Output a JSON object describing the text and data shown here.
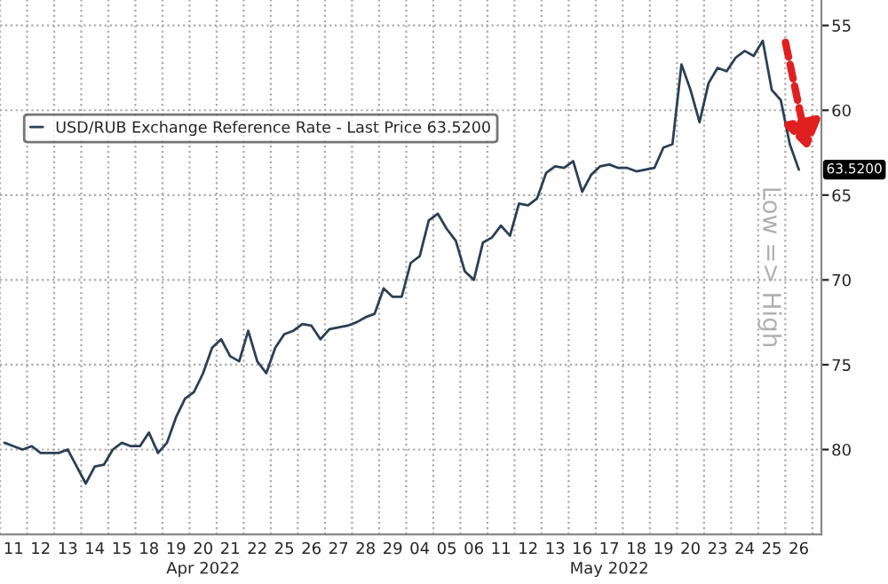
{
  "chart_data": {
    "type": "line",
    "categories": [
      null,
      "11",
      null,
      null,
      "12",
      null,
      null,
      "13",
      null,
      null,
      "14",
      null,
      null,
      "15",
      null,
      null,
      "18",
      null,
      null,
      "19",
      null,
      null,
      "20",
      null,
      null,
      "21",
      null,
      null,
      "22",
      null,
      null,
      "25",
      null,
      null,
      "26",
      null,
      null,
      "27",
      null,
      null,
      "28",
      null,
      null,
      "29",
      null,
      null,
      "04",
      null,
      null,
      "05",
      null,
      null,
      "06",
      null,
      null,
      "11",
      null,
      null,
      "12",
      null,
      null,
      "13",
      null,
      null,
      "16",
      null,
      null,
      "17",
      null,
      null,
      "18",
      null,
      null,
      "19",
      null,
      null,
      "20",
      null,
      null,
      "23",
      null,
      null,
      "24",
      null,
      null,
      "25",
      null,
      null,
      "26",
      null
    ],
    "series": [
      {
        "name": "USD/RUB Exchange Reference Rate - Last Price 63.5200",
        "color": "#2b3f55",
        "values": [
          79.6,
          79.8,
          80.0,
          79.8,
          80.2,
          80.2,
          80.2,
          80.0,
          81.0,
          82.0,
          81.0,
          80.9,
          80.0,
          79.6,
          79.8,
          79.8,
          79.0,
          80.2,
          79.6,
          78.1,
          77.0,
          76.6,
          75.5,
          74.0,
          73.5,
          74.5,
          74.8,
          73.0,
          74.8,
          75.5,
          74.0,
          73.2,
          73.0,
          72.6,
          72.7,
          73.5,
          72.9,
          72.8,
          72.7,
          72.5,
          72.2,
          72.0,
          70.5,
          71.0,
          71.0,
          69.0,
          68.6,
          66.5,
          66.1,
          67.0,
          67.7,
          69.5,
          70.0,
          67.8,
          67.5,
          66.8,
          67.4,
          65.5,
          65.6,
          65.2,
          63.7,
          63.3,
          63.4,
          63.0,
          64.8,
          63.8,
          63.3,
          63.2,
          63.4,
          63.4,
          63.6,
          63.5,
          63.4,
          62.2,
          62.0,
          57.3,
          58.8,
          60.7,
          58.4,
          57.5,
          57.7,
          56.9,
          56.5,
          56.8,
          55.9,
          58.8,
          59.4,
          62.0,
          63.5,
          null
        ]
      }
    ],
    "ylim": [
      85,
      53.5
    ],
    "yticks": [
      55,
      60,
      65,
      70,
      75,
      80
    ],
    "ylabel": "Low => High",
    "annotations": [
      "Apr 2022",
      "May 2022",
      "63.5200"
    ],
    "legend": "top left",
    "grid": true
  }
}
